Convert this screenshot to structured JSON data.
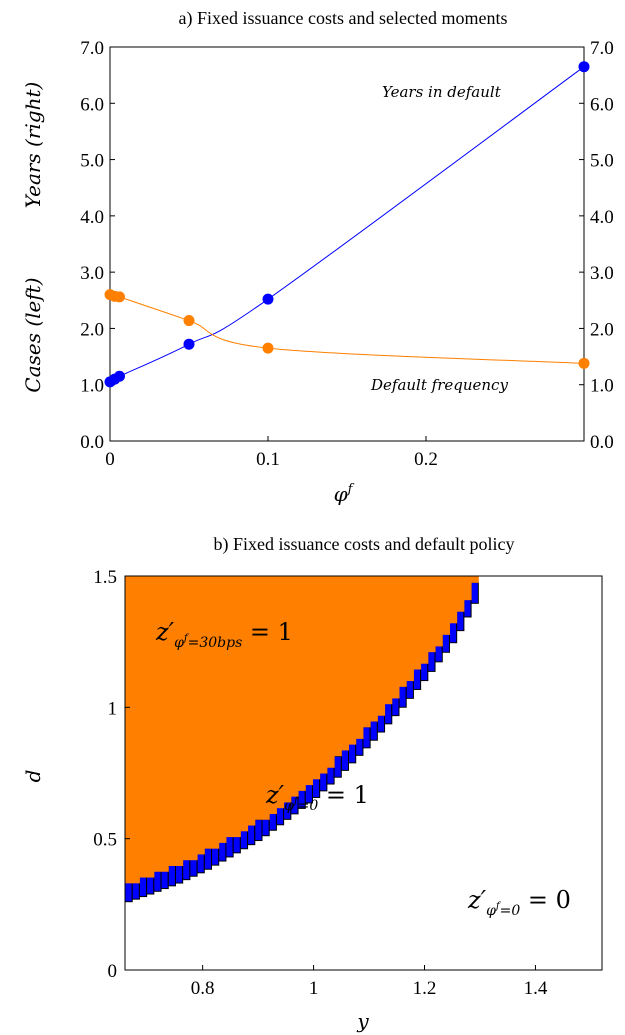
{
  "chart_data": [
    {
      "type": "line",
      "title": "a) Fixed issuance costs and selected moments",
      "xlabel": "φ^f",
      "ylabel_left": "Cases (left)",
      "ylabel_right": "Years (right)",
      "xlim": [
        0,
        0.3
      ],
      "ylim": [
        0,
        7
      ],
      "x_ticks": [
        "0",
        "0.1",
        "0.2"
      ],
      "x_tick_values": [
        0,
        0.1,
        0.2
      ],
      "y_ticks_left": [
        "0.0",
        "1.0",
        "2.0",
        "3.0",
        "4.0",
        "5.0",
        "6.0",
        "7.0"
      ],
      "y_ticks_right": [
        "0.0",
        "1.0",
        "2.0",
        "3.0",
        "4.0",
        "5.0",
        "6.0",
        "7.0"
      ],
      "y_tick_values": [
        0,
        1,
        2,
        3,
        4,
        5,
        6,
        7
      ],
      "grid": false,
      "series": [
        {
          "name": "Years in default",
          "color": "#0000ff",
          "x": [
            0,
            0.003,
            0.006,
            0.05,
            0.1,
            0.3
          ],
          "y": [
            1.05,
            1.1,
            1.15,
            1.72,
            2.52,
            6.65
          ]
        },
        {
          "name": "Default frequency",
          "color": "#ff8000",
          "x": [
            0,
            0.003,
            0.006,
            0.05,
            0.1,
            0.3
          ],
          "y": [
            2.6,
            2.57,
            2.56,
            2.14,
            1.65,
            1.38
          ]
        }
      ]
    },
    {
      "type": "heatmap",
      "title": "b) Fixed issuance costs and default policy",
      "xlabel": "y",
      "ylabel": "d",
      "xlim": [
        0.66,
        1.52
      ],
      "ylim": [
        0,
        1.5
      ],
      "x_ticks": [
        "0.8",
        "1",
        "1.2",
        "1.4"
      ],
      "x_tick_values": [
        0.8,
        1.0,
        1.2,
        1.4
      ],
      "y_ticks": [
        "0",
        "0.5",
        "1",
        "1.5"
      ],
      "y_tick_values": [
        0,
        0.5,
        1.0,
        1.5
      ],
      "regions": [
        {
          "label": "z'_{φ^f=30bps} = 1",
          "color": "#ff8000"
        },
        {
          "label": "z'_{φ^f=0} = 1",
          "color": "#0000ff"
        },
        {
          "label": "z'_{φ^f=0} = 0",
          "color": "#ffffff"
        }
      ],
      "orange_boundary": {
        "y": [
          0.66,
          0.7,
          0.75,
          0.8,
          0.85,
          0.9,
          0.95,
          1.0,
          1.05,
          1.1,
          1.15,
          1.2,
          1.25,
          1.29
        ],
        "d": [
          0.34,
          0.37,
          0.41,
          0.46,
          0.52,
          0.58,
          0.66,
          0.74,
          0.84,
          0.95,
          1.07,
          1.2,
          1.34,
          1.5
        ]
      },
      "blue_band_width_d": 0.08,
      "blue_band_width_y": 0.012
    }
  ]
}
